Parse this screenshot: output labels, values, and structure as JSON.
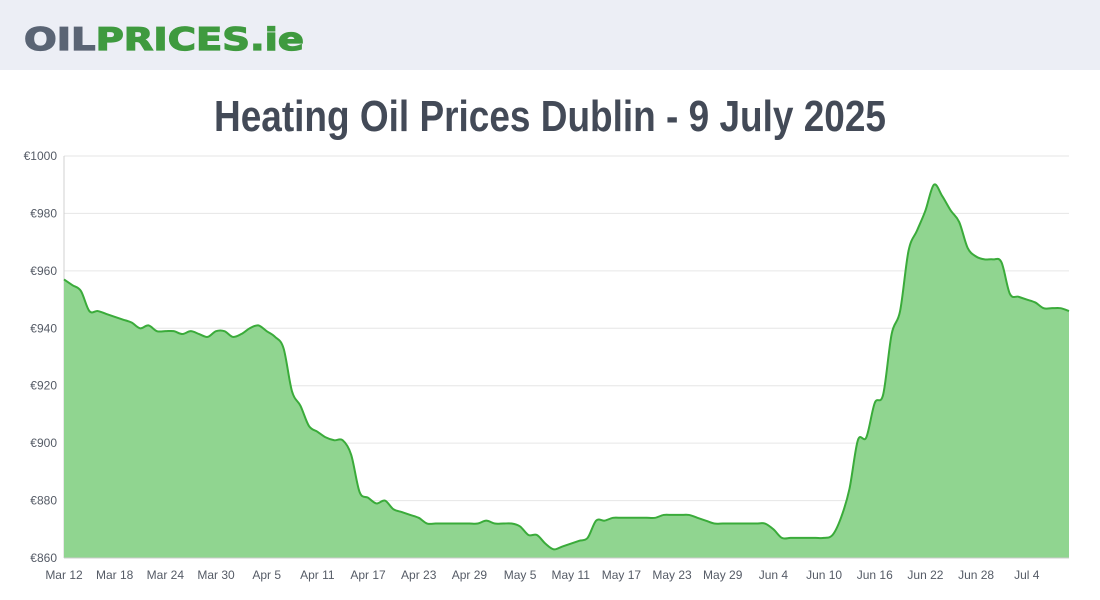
{
  "header": {
    "logo": [
      "OIL",
      "PRICES",
      ".ie"
    ]
  },
  "chart_data": {
    "type": "area",
    "title": "Heating Oil Prices Dublin - 9 July 2025",
    "categories": [
      "Mar 12",
      null,
      null,
      null,
      null,
      null,
      "Mar 18",
      null,
      null,
      null,
      null,
      null,
      "Mar 24",
      null,
      null,
      null,
      null,
      null,
      "Mar 30",
      null,
      null,
      null,
      null,
      null,
      "Apr 5",
      null,
      null,
      null,
      null,
      null,
      "Apr 11",
      null,
      null,
      null,
      null,
      null,
      "Apr 17",
      null,
      null,
      null,
      null,
      null,
      "Apr 23",
      null,
      null,
      null,
      null,
      null,
      "Apr 29",
      null,
      null,
      null,
      null,
      null,
      "May 5",
      null,
      null,
      null,
      null,
      null,
      "May 11",
      null,
      null,
      null,
      null,
      null,
      "May 17",
      null,
      null,
      null,
      null,
      null,
      "May 23",
      null,
      null,
      null,
      null,
      null,
      "May 29",
      null,
      null,
      null,
      null,
      null,
      "Jun 4",
      null,
      null,
      null,
      null,
      null,
      "Jun 10",
      null,
      null,
      null,
      null,
      null,
      "Jun 16",
      null,
      null,
      null,
      null,
      null,
      "Jun 22",
      null,
      null,
      null,
      null,
      null,
      "Jun 28",
      null,
      null,
      null,
      null,
      null,
      "Jul 4",
      null,
      null,
      null,
      null,
      null
    ],
    "values": [
      957,
      955,
      953,
      946,
      946,
      945,
      944,
      943,
      942,
      940,
      941,
      939,
      939,
      939,
      938,
      939,
      938,
      937,
      939,
      939,
      937,
      938,
      940,
      941,
      939,
      937,
      933,
      918,
      913,
      906,
      904,
      902,
      901,
      901,
      896,
      883,
      881,
      879,
      880,
      877,
      876,
      875,
      874,
      872,
      872,
      872,
      872,
      872,
      872,
      872,
      873,
      872,
      872,
      872,
      871,
      868,
      868,
      865,
      863,
      864,
      865,
      866,
      867,
      873,
      873,
      874,
      874,
      874,
      874,
      874,
      874,
      875,
      875,
      875,
      875,
      874,
      873,
      872,
      872,
      872,
      872,
      872,
      872,
      872,
      870,
      867,
      867,
      867,
      867,
      867,
      867,
      868,
      874,
      884,
      901,
      902,
      914,
      917,
      938,
      946,
      967,
      974,
      981,
      990,
      986,
      981,
      977,
      968,
      965,
      964,
      964,
      963,
      952,
      951,
      950,
      949,
      947,
      947,
      947,
      946
    ],
    "ylim": [
      860,
      1000
    ],
    "yticks": [
      {
        "value": 860,
        "label": "€860"
      },
      {
        "value": 880,
        "label": "€880"
      },
      {
        "value": 900,
        "label": "€900"
      },
      {
        "value": 920,
        "label": "€920"
      },
      {
        "value": 940,
        "label": "€940"
      },
      {
        "value": 960,
        "label": "€960"
      },
      {
        "value": 980,
        "label": "€980"
      },
      {
        "value": 1000,
        "label": "€1000"
      }
    ],
    "grid": true,
    "color": "#90d590",
    "line_color": "#3aab3a"
  }
}
